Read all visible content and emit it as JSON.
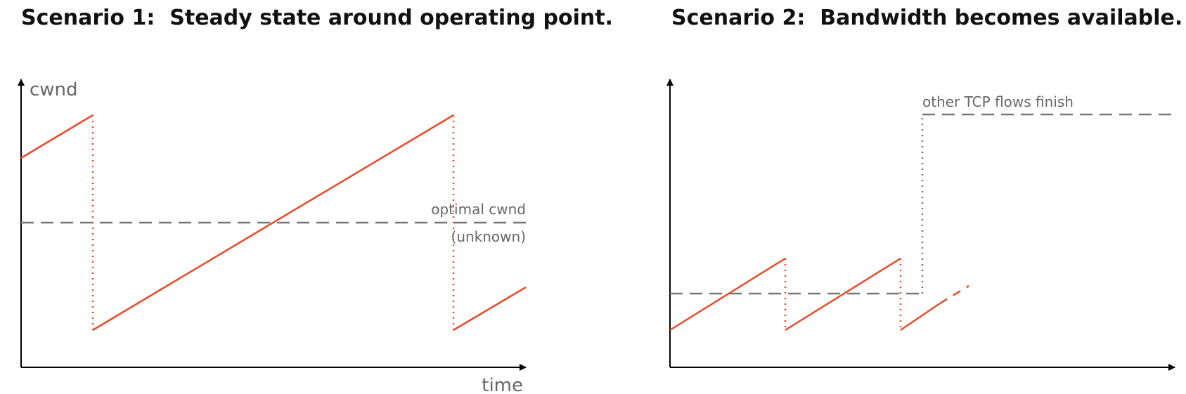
{
  "scenario1": {
    "title_bold": "Scenario 1",
    "title_rest": ":  Steady state around operating point.",
    "y_axis_label": "cwnd",
    "x_axis_label": "time",
    "optimal_label_line1": "optimal cwnd",
    "optimal_label_line2": "(unknown)"
  },
  "scenario2": {
    "title_bold": "Scenario 2",
    "title_rest": ":  Bandwidth becomes available.",
    "annotation": "other TCP flows finish"
  },
  "colors": {
    "cwnd_line": "#e64a2a",
    "threshold_line": "#777777",
    "axis": "#000000",
    "label_text": "#666666"
  }
}
